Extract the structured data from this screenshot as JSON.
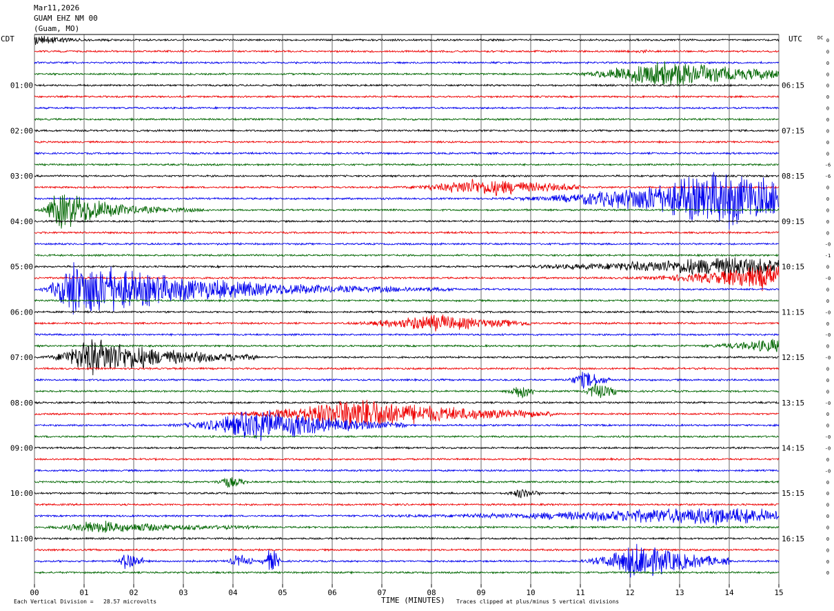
{
  "header": {
    "date": "Mar11,2026",
    "channel": "GUAM EHZ NM 00",
    "location": "(Guam, MO)"
  },
  "axes": {
    "left_tz": "CDT",
    "right_tz": "UTC",
    "right_col_label": "DC",
    "xlabel": "TIME (MINUTES)"
  },
  "footer": {
    "scale": "Each Vertical Division =   28.57 microvolts",
    "clip": "Traces clipped at plus/minus 5 vertical divisions"
  },
  "chart_data": {
    "type": "line",
    "xlim": [
      0,
      15
    ],
    "x_ticks": [
      "00",
      "01",
      "02",
      "03",
      "04",
      "05",
      "06",
      "07",
      "08",
      "09",
      "10",
      "11",
      "12",
      "13",
      "14",
      "15"
    ],
    "trace_count": 48,
    "minutes_per_trace": 15,
    "trace_colors": [
      "#000000",
      "#ee0000",
      "#0000ee",
      "#006600"
    ],
    "hour_labels_left": [
      "01:00",
      "02:00",
      "03:00",
      "04:00",
      "05:00",
      "06:00",
      "07:00",
      "08:00",
      "09:00",
      "10:00",
      "11:00"
    ],
    "hour_labels_right": [
      "06:15",
      "07:15",
      "08:15",
      "09:15",
      "10:15",
      "11:15",
      "12:15",
      "13:15",
      "14:15",
      "15:15",
      "16:15"
    ],
    "dc_offsets": [
      "0",
      "0",
      "0",
      "0",
      "0",
      "0",
      "0",
      "0",
      "0",
      "0",
      "0",
      "-6",
      "-6",
      "0",
      "0",
      "0",
      "0",
      "0",
      "-0",
      "-1",
      "0",
      "-0",
      "0",
      "0",
      "-0",
      "0",
      "-0",
      "0",
      "-0",
      "0",
      "0",
      "0",
      "-0",
      "0",
      "0",
      "-0",
      "-0",
      "0",
      "-0",
      "0",
      "0",
      "0",
      "0",
      "0",
      "0",
      "0",
      "0",
      "0"
    ],
    "clip_divisions": 5,
    "microvolts_per_division": 28.57,
    "events": [
      {
        "trace": 0,
        "start": 0.0,
        "end": 3.0,
        "peak": 0.0,
        "amp": 12,
        "decay": 0.4
      },
      {
        "trace": 1,
        "start": 12.0,
        "end": 12.4,
        "peak": 12.2,
        "amp": 2,
        "decay": 0.3
      },
      {
        "trace": 3,
        "start": 10.5,
        "end": 15.0,
        "peak": 12.5,
        "amp": 22,
        "decay": 2.0
      },
      {
        "trace": 13,
        "start": 7.0,
        "end": 11.0,
        "peak": 9.0,
        "amp": 14,
        "decay": 1.5
      },
      {
        "trace": 14,
        "start": 9.0,
        "end": 15.0,
        "peak": 14.0,
        "amp": 45,
        "decay": 1.8
      },
      {
        "trace": 15,
        "start": 0.0,
        "end": 3.5,
        "peak": 0.5,
        "amp": 32,
        "decay": 0.9
      },
      {
        "trace": 20,
        "start": 8.5,
        "end": 15.0,
        "peak": 14.2,
        "amp": 16,
        "decay": 1.8
      },
      {
        "trace": 21,
        "start": 11.5,
        "end": 15.0,
        "peak": 14.8,
        "amp": 20,
        "decay": 1.2
      },
      {
        "trace": 22,
        "start": 0.0,
        "end": 8.5,
        "peak": 0.8,
        "amp": 48,
        "decay": 2.3
      },
      {
        "trace": 25,
        "start": 6.0,
        "end": 10.0,
        "peak": 8.0,
        "amp": 14,
        "decay": 1.2
      },
      {
        "trace": 27,
        "start": 13.0,
        "end": 15.0,
        "peak": 15.0,
        "amp": 12,
        "decay": 0.8
      },
      {
        "trace": 28,
        "start": 0.0,
        "end": 4.5,
        "peak": 1.2,
        "amp": 32,
        "decay": 1.4
      },
      {
        "trace": 30,
        "start": 10.6,
        "end": 11.6,
        "peak": 11.1,
        "amp": 16,
        "decay": 0.3
      },
      {
        "trace": 31,
        "start": 9.4,
        "end": 10.1,
        "peak": 9.8,
        "amp": 14,
        "decay": 0.25
      },
      {
        "trace": 31,
        "start": 11.0,
        "end": 11.8,
        "peak": 11.3,
        "amp": 16,
        "decay": 0.3
      },
      {
        "trace": 33,
        "start": 3.5,
        "end": 10.5,
        "peak": 6.5,
        "amp": 28,
        "decay": 1.8
      },
      {
        "trace": 34,
        "start": 2.5,
        "end": 7.5,
        "peak": 4.5,
        "amp": 28,
        "decay": 1.4
      },
      {
        "trace": 39,
        "start": 3.5,
        "end": 4.3,
        "peak": 3.9,
        "amp": 10,
        "decay": 0.25
      },
      {
        "trace": 40,
        "start": 9.4,
        "end": 10.2,
        "peak": 9.8,
        "amp": 8,
        "decay": 0.3
      },
      {
        "trace": 42,
        "start": 6.0,
        "end": 15.0,
        "peak": 13.8,
        "amp": 14,
        "decay": 2.5
      },
      {
        "trace": 43,
        "start": 0.0,
        "end": 4.5,
        "peak": 1.2,
        "amp": 10,
        "decay": 1.5
      },
      {
        "trace": 46,
        "start": 1.6,
        "end": 2.2,
        "peak": 1.9,
        "amp": 20,
        "decay": 0.2
      },
      {
        "trace": 46,
        "start": 3.8,
        "end": 4.4,
        "peak": 4.1,
        "amp": 12,
        "decay": 0.2
      },
      {
        "trace": 46,
        "start": 4.5,
        "end": 5.0,
        "peak": 4.75,
        "amp": 22,
        "decay": 0.2
      },
      {
        "trace": 46,
        "start": 10.8,
        "end": 14.0,
        "peak": 12.2,
        "amp": 32,
        "decay": 0.9
      }
    ]
  }
}
